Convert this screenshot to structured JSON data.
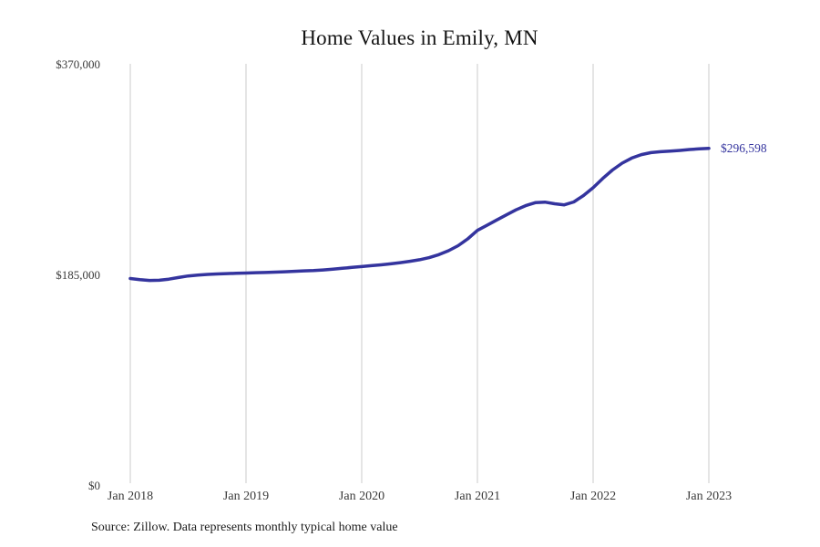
{
  "chart": {
    "title": "Home Values in Emily, MN",
    "end_label": "$296,598",
    "source": "Source: Zillow. Data represents monthly typical home value",
    "line_color": "#34349E",
    "end_label_color": "#34349E",
    "grid_color": "#cbcbcb"
  },
  "chart_data": {
    "type": "line",
    "title": "Home Values in Emily, MN",
    "xlabel": "",
    "ylabel": "",
    "unit": "USD",
    "frequency": "monthly",
    "x_start": "Jan 2018",
    "x_end": "Jan 2023",
    "x_tick_labels": [
      "Jan 2018",
      "Jan 2019",
      "Jan 2020",
      "Jan 2021",
      "Jan 2022",
      "Jan 2023"
    ],
    "y_ticks": [
      0,
      185000,
      370000
    ],
    "y_tick_labels": [
      "$0",
      "$185,000",
      "$370,000"
    ],
    "ylim": [
      0,
      370000
    ],
    "grid": "vertical-only",
    "legend": "none",
    "annotations": [
      {
        "text": "$296,598",
        "position": "end-of-line"
      }
    ],
    "series": [
      {
        "name": "Typical home value",
        "values": [
          182200,
          181200,
          180500,
          180700,
          181600,
          183100,
          184400,
          185200,
          185800,
          186200,
          186500,
          186800,
          187000,
          187300,
          187500,
          187800,
          188100,
          188500,
          188900,
          189200,
          189700,
          190400,
          191200,
          192000,
          192700,
          193500,
          194200,
          195100,
          196100,
          197300,
          198700,
          200500,
          203200,
          206600,
          211000,
          217000,
          224500,
          229000,
          233600,
          238100,
          242500,
          246200,
          248800,
          249300,
          247900,
          246900,
          249500,
          255100,
          262000,
          270100,
          277500,
          283500,
          288000,
          291000,
          292800,
          293600,
          294100,
          294700,
          295500,
          296100,
          296598
        ]
      }
    ]
  }
}
